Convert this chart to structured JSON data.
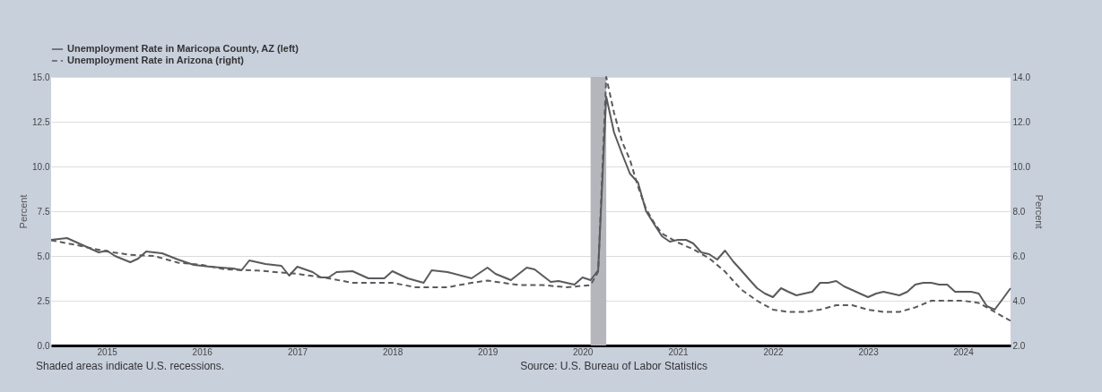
{
  "chart_data": {
    "type": "line",
    "ylabel": "Percent",
    "y2label": "Percent",
    "xlim": [
      "2014-06",
      "2024-07"
    ],
    "xticks": [
      "2015",
      "2016",
      "2017",
      "2018",
      "2019",
      "2020",
      "2021",
      "2022",
      "2023",
      "2024"
    ],
    "ylim": [
      0,
      15
    ],
    "yticks": [
      {
        "value": 0,
        "label": "0.0"
      },
      2.5,
      {
        "value": 5,
        "label": "5.0"
      },
      7.5,
      {
        "value": 10,
        "label": "10.0"
      },
      12.5,
      {
        "value": 15,
        "label": "15.0"
      }
    ],
    "y2lim": [
      2,
      14
    ],
    "y2ticks": [
      {
        "value": 2,
        "label": "2.0"
      },
      {
        "value": 4,
        "label": "4.0"
      },
      {
        "value": 6,
        "label": "6.0"
      },
      {
        "value": 8,
        "label": "8.0"
      },
      {
        "value": 10,
        "label": "10.0"
      },
      {
        "value": 12,
        "label": "12.0"
      },
      {
        "value": 14,
        "label": "14.0"
      }
    ],
    "grid": "y",
    "legend": "top left",
    "bands": [
      {
        "axis": "x",
        "from": "2020-02",
        "to": "2020-04",
        "color": "#b4b6bc"
      }
    ],
    "annotations": [
      "Shaded areas indicate U.S. recessions.",
      "Source: U.S. Bureau of Labor Statistics"
    ],
    "series": [
      {
        "name": "Unemployment Rate in Maricopa County, AZ (left)",
        "color": "#5a5a5e",
        "line_style": "solid",
        "type": "line",
        "x": [
          "2014-06",
          "2014-08",
          "2014-10",
          "2014-12",
          "2015-01",
          "2015-02",
          "2015-04",
          "2015-05",
          "2015-06",
          "2015-08",
          "2015-10",
          "2015-12",
          "2016-02",
          "2016-05",
          "2016-06",
          "2016-07",
          "2016-09",
          "2016-11",
          "2016-12",
          "2017-01",
          "2017-03",
          "2017-04",
          "2017-05",
          "2017-06",
          "2017-08",
          "2017-10",
          "2017-12",
          "2018-01",
          "2018-03",
          "2018-05",
          "2018-06",
          "2018-08",
          "2018-11",
          "2019-01",
          "2019-02",
          "2019-04",
          "2019-06",
          "2019-07",
          "2019-09",
          "2019-10",
          "2019-12",
          "2020-01",
          "2020-02",
          "2020-03",
          "2020-04",
          "2020-05",
          "2020-06",
          "2020-07",
          "2020-08",
          "2020-09",
          "2020-10",
          "2020-11",
          "2020-12",
          "2021-01",
          "2021-02",
          "2021-03",
          "2021-04",
          "2021-05",
          "2021-06",
          "2021-07",
          "2021-08",
          "2021-09",
          "2021-10",
          "2021-11",
          "2021-12",
          "2022-01",
          "2022-02",
          "2022-03",
          "2022-04",
          "2022-05",
          "2022-06",
          "2022-07",
          "2022-08",
          "2022-09",
          "2022-10",
          "2022-11",
          "2022-12",
          "2023-01",
          "2023-02",
          "2023-03",
          "2023-04",
          "2023-05",
          "2023-06",
          "2023-07",
          "2023-08",
          "2023-09",
          "2023-10",
          "2023-11",
          "2023-12",
          "2024-01",
          "2024-02",
          "2024-03",
          "2024-04",
          "2024-05",
          "2024-06",
          "2024-07"
        ],
        "values": [
          5.9,
          6.0,
          5.6,
          5.2,
          5.3,
          5.0,
          4.65,
          4.85,
          5.25,
          5.15,
          4.8,
          4.5,
          4.4,
          4.3,
          4.2,
          4.75,
          4.55,
          4.45,
          3.9,
          4.4,
          4.1,
          3.8,
          3.8,
          4.1,
          4.15,
          3.75,
          3.75,
          4.15,
          3.75,
          3.5,
          4.2,
          4.1,
          3.75,
          4.35,
          4.0,
          3.65,
          4.35,
          4.25,
          3.55,
          3.6,
          3.4,
          3.8,
          3.65,
          4.2,
          13.9,
          11.9,
          10.7,
          9.6,
          9.1,
          7.5,
          6.8,
          6.1,
          5.8,
          5.9,
          5.9,
          5.7,
          5.2,
          5.1,
          4.8,
          5.3,
          4.7,
          4.2,
          3.7,
          3.2,
          2.9,
          2.7,
          3.2,
          3.0,
          2.8,
          2.9,
          3.0,
          3.5,
          3.5,
          3.6,
          3.3,
          3.1,
          2.9,
          2.7,
          2.9,
          3.0,
          2.9,
          2.8,
          3.0,
          3.4,
          3.5,
          3.5,
          3.4,
          3.4,
          3.0,
          3.0,
          3.0,
          2.9,
          2.2,
          2.0,
          2.6,
          3.2
        ]
      },
      {
        "name": "Unemployment Rate in Arizona (right)",
        "color": "#5a5a5e",
        "line_style": "dashed",
        "type": "line",
        "axis": "y2",
        "x": [
          "2014-06",
          "2014-09",
          "2015-01",
          "2015-04",
          "2015-07",
          "2015-10",
          "2016-01",
          "2016-04",
          "2016-08",
          "2017-01",
          "2017-05",
          "2017-08",
          "2017-11",
          "2018-01",
          "2018-04",
          "2018-08",
          "2018-11",
          "2019-01",
          "2019-05",
          "2019-08",
          "2019-11",
          "2020-02",
          "2020-03",
          "2020-04",
          "2020-05",
          "2020-06",
          "2020-07",
          "2020-08",
          "2020-09",
          "2020-10",
          "2020-11",
          "2020-12",
          "2021-01",
          "2021-03",
          "2021-05",
          "2021-07",
          "2021-09",
          "2021-11",
          "2022-01",
          "2022-03",
          "2022-05",
          "2022-07",
          "2022-09",
          "2022-11",
          "2023-01",
          "2023-03",
          "2023-05",
          "2023-07",
          "2023-09",
          "2023-11",
          "2024-01",
          "2024-03",
          "2024-05",
          "2024-07"
        ],
        "values": [
          6.7,
          6.5,
          6.2,
          6.05,
          6.0,
          5.7,
          5.6,
          5.4,
          5.35,
          5.2,
          5.0,
          4.8,
          4.8,
          4.8,
          4.6,
          4.6,
          4.8,
          4.9,
          4.7,
          4.7,
          4.6,
          4.7,
          5.3,
          14.0,
          12.4,
          11.1,
          10.3,
          9.1,
          8.1,
          7.5,
          7.0,
          6.8,
          6.6,
          6.3,
          5.9,
          5.3,
          4.5,
          4.0,
          3.6,
          3.5,
          3.5,
          3.6,
          3.8,
          3.8,
          3.6,
          3.5,
          3.5,
          3.7,
          4.0,
          4.0,
          4.0,
          3.9,
          3.5,
          3.1
        ]
      }
    ]
  }
}
